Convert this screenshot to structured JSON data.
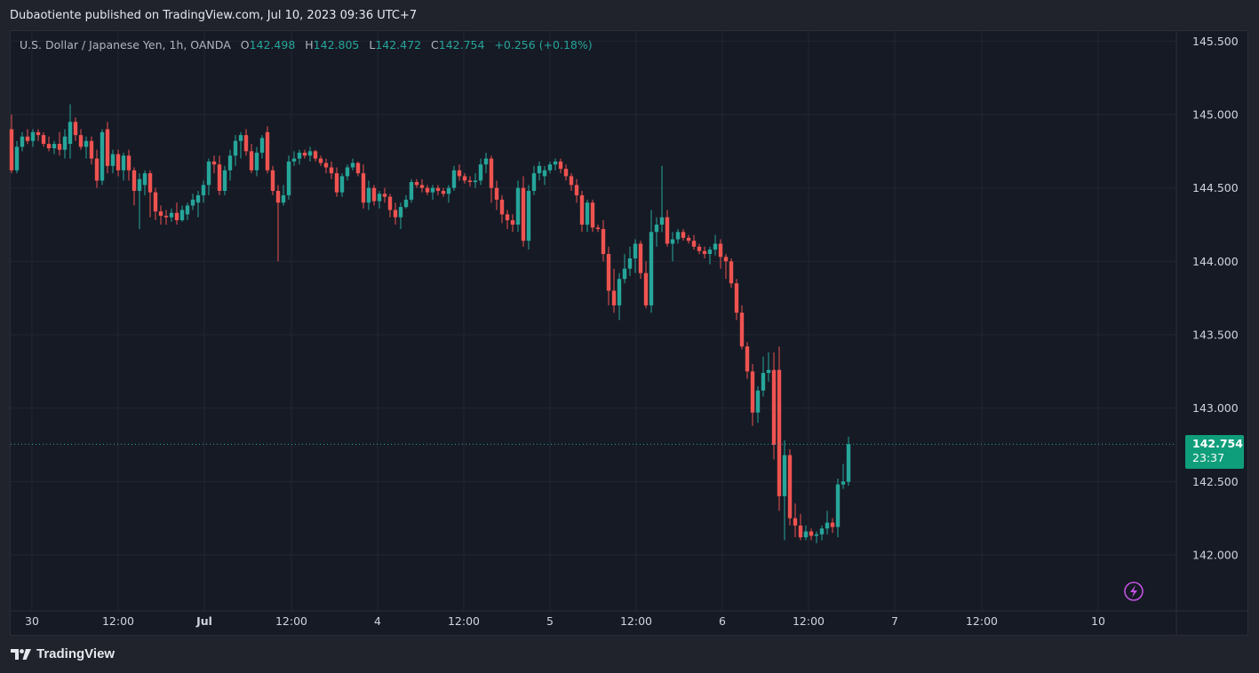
{
  "header": {
    "publish_text": "Dubaotiente published on TradingView.com, Jul 10, 2023 09:36 UTC+7"
  },
  "legend": {
    "symbol": "U.S. Dollar / Japanese Yen, 1h, OANDA",
    "open_label": "O",
    "open": "142.498",
    "high_label": "H",
    "high": "142.805",
    "low_label": "L",
    "low": "142.472",
    "close_label": "C",
    "close": "142.754",
    "change": "+0.256 (+0.18%)"
  },
  "price_tag": {
    "price": "142.754",
    "countdown": "23:37"
  },
  "footer": {
    "brand": "TradingView"
  },
  "colors": {
    "up": "#26a69a",
    "down": "#ef5350",
    "background": "#161a25",
    "grid": "#232632",
    "alert": "#c252e1"
  },
  "icons": {
    "alert": "lightning-bolt-icon",
    "logo": "tradingview-logo-icon"
  },
  "chart_data": {
    "type": "candlestick",
    "timeframe": "1h",
    "y_ticks": [
      "145.500",
      "145.000",
      "144.500",
      "144.000",
      "143.500",
      "143.000",
      "142.500",
      "142.000"
    ],
    "ylim": [
      141.7,
      145.6
    ],
    "x_ticks": [
      "30",
      "12:00",
      "Jul",
      "12:00",
      "4",
      "12:00",
      "5",
      "12:00",
      "6",
      "12:00",
      "7",
      "12:00",
      "10"
    ],
    "last_price": 142.754,
    "candles": [
      [
        144.9,
        145.0,
        144.6,
        144.62
      ],
      [
        144.62,
        144.82,
        144.6,
        144.78
      ],
      [
        144.78,
        144.88,
        144.75,
        144.85
      ],
      [
        144.85,
        144.9,
        144.8,
        144.82
      ],
      [
        144.82,
        144.9,
        144.78,
        144.88
      ],
      [
        144.88,
        144.9,
        144.82,
        144.86
      ],
      [
        144.86,
        144.88,
        144.78,
        144.8
      ],
      [
        144.8,
        144.85,
        144.75,
        144.77
      ],
      [
        144.77,
        144.82,
        144.73,
        144.8
      ],
      [
        144.8,
        144.88,
        144.72,
        144.76
      ],
      [
        144.76,
        144.9,
        144.7,
        144.85
      ],
      [
        144.8,
        145.07,
        144.7,
        144.95
      ],
      [
        144.95,
        144.98,
        144.82,
        144.86
      ],
      [
        144.86,
        144.9,
        144.76,
        144.78
      ],
      [
        144.78,
        144.85,
        144.7,
        144.82
      ],
      [
        144.82,
        144.85,
        144.66,
        144.7
      ],
      [
        144.7,
        144.76,
        144.5,
        144.55
      ],
      [
        144.55,
        144.9,
        144.52,
        144.88
      ],
      [
        144.9,
        144.95,
        144.6,
        144.65
      ],
      [
        144.65,
        144.76,
        144.6,
        144.73
      ],
      [
        144.73,
        144.76,
        144.58,
        144.62
      ],
      [
        144.62,
        144.74,
        144.55,
        144.72
      ],
      [
        144.72,
        144.76,
        144.55,
        144.62
      ],
      [
        144.62,
        144.64,
        144.38,
        144.48
      ],
      [
        144.48,
        144.6,
        144.22,
        144.56
      ],
      [
        144.52,
        144.62,
        144.45,
        144.6
      ],
      [
        144.6,
        144.62,
        144.3,
        144.47
      ],
      [
        144.47,
        144.5,
        144.28,
        144.34
      ],
      [
        144.34,
        144.38,
        144.25,
        144.31
      ],
      [
        144.31,
        144.35,
        144.25,
        144.3
      ],
      [
        144.3,
        144.36,
        144.27,
        144.33
      ],
      [
        144.33,
        144.4,
        144.25,
        144.28
      ],
      [
        144.28,
        144.38,
        144.27,
        144.35
      ],
      [
        144.32,
        144.4,
        144.28,
        144.38
      ],
      [
        144.38,
        144.46,
        144.35,
        144.42
      ],
      [
        144.4,
        144.48,
        144.3,
        144.45
      ],
      [
        144.45,
        144.55,
        144.4,
        144.52
      ],
      [
        144.52,
        144.7,
        144.45,
        144.68
      ],
      [
        144.68,
        144.72,
        144.6,
        144.66
      ],
      [
        144.66,
        144.72,
        144.45,
        144.48
      ],
      [
        144.48,
        144.65,
        144.45,
        144.62
      ],
      [
        144.62,
        144.76,
        144.55,
        144.72
      ],
      [
        144.72,
        144.86,
        144.65,
        144.82
      ],
      [
        144.82,
        144.88,
        144.7,
        144.86
      ],
      [
        144.86,
        144.9,
        144.72,
        144.75
      ],
      [
        144.75,
        144.8,
        144.6,
        144.62
      ],
      [
        144.62,
        144.78,
        144.58,
        144.74
      ],
      [
        144.74,
        144.86,
        144.7,
        144.84
      ],
      [
        144.88,
        144.92,
        144.6,
        144.62
      ],
      [
        144.62,
        144.65,
        144.45,
        144.48
      ],
      [
        144.48,
        144.52,
        144.0,
        144.4
      ],
      [
        144.4,
        144.52,
        144.38,
        144.45
      ],
      [
        144.45,
        144.72,
        144.42,
        144.68
      ],
      [
        144.68,
        144.75,
        144.65,
        144.7
      ],
      [
        144.7,
        144.76,
        144.66,
        144.74
      ],
      [
        144.74,
        144.76,
        144.7,
        144.72
      ],
      [
        144.72,
        144.78,
        144.68,
        144.75
      ],
      [
        144.75,
        144.76,
        144.68,
        144.7
      ],
      [
        144.7,
        144.72,
        144.65,
        144.67
      ],
      [
        144.67,
        144.7,
        144.6,
        144.64
      ],
      [
        144.64,
        144.68,
        144.56,
        144.6
      ],
      [
        144.6,
        144.64,
        144.44,
        144.47
      ],
      [
        144.47,
        144.6,
        144.44,
        144.58
      ],
      [
        144.58,
        144.66,
        144.55,
        144.64
      ],
      [
        144.64,
        144.7,
        144.62,
        144.67
      ],
      [
        144.67,
        144.68,
        144.58,
        144.6
      ],
      [
        144.6,
        144.66,
        144.36,
        144.4
      ],
      [
        144.4,
        144.55,
        144.35,
        144.5
      ],
      [
        144.5,
        144.52,
        144.38,
        144.41
      ],
      [
        144.41,
        144.48,
        144.36,
        144.46
      ],
      [
        144.46,
        144.5,
        144.4,
        144.44
      ],
      [
        144.44,
        144.46,
        144.3,
        144.35
      ],
      [
        144.35,
        144.4,
        144.25,
        144.3
      ],
      [
        144.3,
        144.4,
        144.22,
        144.37
      ],
      [
        144.37,
        144.45,
        144.36,
        144.42
      ],
      [
        144.42,
        144.56,
        144.4,
        144.54
      ],
      [
        144.54,
        144.56,
        144.5,
        144.52
      ],
      [
        144.52,
        144.56,
        144.47,
        144.5
      ],
      [
        144.5,
        144.52,
        144.45,
        144.47
      ],
      [
        144.47,
        144.52,
        144.42,
        144.5
      ],
      [
        144.5,
        144.52,
        144.45,
        144.48
      ],
      [
        144.48,
        144.5,
        144.44,
        144.46
      ],
      [
        144.46,
        144.52,
        144.4,
        144.5
      ],
      [
        144.5,
        144.65,
        144.48,
        144.62
      ],
      [
        144.62,
        144.66,
        144.55,
        144.58
      ],
      [
        144.58,
        144.6,
        144.53,
        144.55
      ],
      [
        144.55,
        144.58,
        144.51,
        144.54
      ],
      [
        144.54,
        144.6,
        144.5,
        144.55
      ],
      [
        144.55,
        144.7,
        144.52,
        144.66
      ],
      [
        144.66,
        144.74,
        144.6,
        144.7
      ],
      [
        144.7,
        144.72,
        144.4,
        144.5
      ],
      [
        144.5,
        144.55,
        144.35,
        144.42
      ],
      [
        144.42,
        144.45,
        144.26,
        144.32
      ],
      [
        144.32,
        144.35,
        144.22,
        144.28
      ],
      [
        144.28,
        144.32,
        144.2,
        144.25
      ],
      [
        144.25,
        144.55,
        144.2,
        144.5
      ],
      [
        144.5,
        144.58,
        144.1,
        144.14
      ],
      [
        144.14,
        144.52,
        144.08,
        144.48
      ],
      [
        144.48,
        144.65,
        144.45,
        144.6
      ],
      [
        144.6,
        144.68,
        144.55,
        144.65
      ],
      [
        144.58,
        144.65,
        144.52,
        144.62
      ],
      [
        144.62,
        144.68,
        144.6,
        144.66
      ],
      [
        144.66,
        144.7,
        144.62,
        144.68
      ],
      [
        144.68,
        144.7,
        144.6,
        144.63
      ],
      [
        144.63,
        144.66,
        144.55,
        144.58
      ],
      [
        144.58,
        144.6,
        144.48,
        144.52
      ],
      [
        144.52,
        144.56,
        144.4,
        144.45
      ],
      [
        144.45,
        144.48,
        144.2,
        144.25
      ],
      [
        144.25,
        144.42,
        144.2,
        144.4
      ],
      [
        144.4,
        144.42,
        144.2,
        144.23
      ],
      [
        144.23,
        144.25,
        144.2,
        144.22
      ],
      [
        144.22,
        144.28,
        144.0,
        144.05
      ],
      [
        144.05,
        144.1,
        143.7,
        143.8
      ],
      [
        143.8,
        143.95,
        143.65,
        143.7
      ],
      [
        143.7,
        143.92,
        143.6,
        143.88
      ],
      [
        143.88,
        144.05,
        143.85,
        143.95
      ],
      [
        143.95,
        144.1,
        143.9,
        144.02
      ],
      [
        144.02,
        144.15,
        143.92,
        144.12
      ],
      [
        144.12,
        144.14,
        143.88,
        143.92
      ],
      [
        143.92,
        144.0,
        143.68,
        143.7
      ],
      [
        143.7,
        144.35,
        143.65,
        144.2
      ],
      [
        144.2,
        144.3,
        144.1,
        144.25
      ],
      [
        144.25,
        144.65,
        144.2,
        144.3
      ],
      [
        144.3,
        144.35,
        144.1,
        144.12
      ],
      [
        144.12,
        144.2,
        144.0,
        144.15
      ],
      [
        144.15,
        144.22,
        144.12,
        144.2
      ],
      [
        144.2,
        144.22,
        144.14,
        144.16
      ],
      [
        144.16,
        144.18,
        144.12,
        144.14
      ],
      [
        144.14,
        144.18,
        144.08,
        144.1
      ],
      [
        144.1,
        144.12,
        144.05,
        144.07
      ],
      [
        144.07,
        144.1,
        144.02,
        144.05
      ],
      [
        144.05,
        144.1,
        143.98,
        144.08
      ],
      [
        144.08,
        144.18,
        144.04,
        144.12
      ],
      [
        144.12,
        144.15,
        143.95,
        144.03
      ],
      [
        144.03,
        144.05,
        143.88,
        144.0
      ],
      [
        144.0,
        144.02,
        143.82,
        143.85
      ],
      [
        143.85,
        143.88,
        143.6,
        143.65
      ],
      [
        143.65,
        143.7,
        143.4,
        143.42
      ],
      [
        143.42,
        143.45,
        143.2,
        143.25
      ],
      [
        143.25,
        143.3,
        142.88,
        142.97
      ],
      [
        142.97,
        143.15,
        142.9,
        143.12
      ],
      [
        143.12,
        143.35,
        143.08,
        143.24
      ],
      [
        143.24,
        143.38,
        143.18,
        143.26
      ],
      [
        143.26,
        143.38,
        142.65,
        142.75
      ],
      [
        143.26,
        143.42,
        142.3,
        142.4
      ],
      [
        142.4,
        142.78,
        142.1,
        142.68
      ],
      [
        142.68,
        142.72,
        142.2,
        142.25
      ],
      [
        142.25,
        142.35,
        142.12,
        142.2
      ],
      [
        142.2,
        142.28,
        142.1,
        142.12
      ],
      [
        142.12,
        142.2,
        142.1,
        142.16
      ],
      [
        142.16,
        142.18,
        142.1,
        142.13
      ],
      [
        142.13,
        142.16,
        142.08,
        142.14
      ],
      [
        142.14,
        142.2,
        142.1,
        142.18
      ],
      [
        142.18,
        142.3,
        142.14,
        142.22
      ],
      [
        142.22,
        142.25,
        142.15,
        142.19
      ],
      [
        142.19,
        142.52,
        142.12,
        142.48
      ],
      [
        142.48,
        142.62,
        142.45,
        142.5
      ],
      [
        142.498,
        142.805,
        142.472,
        142.754
      ]
    ]
  }
}
